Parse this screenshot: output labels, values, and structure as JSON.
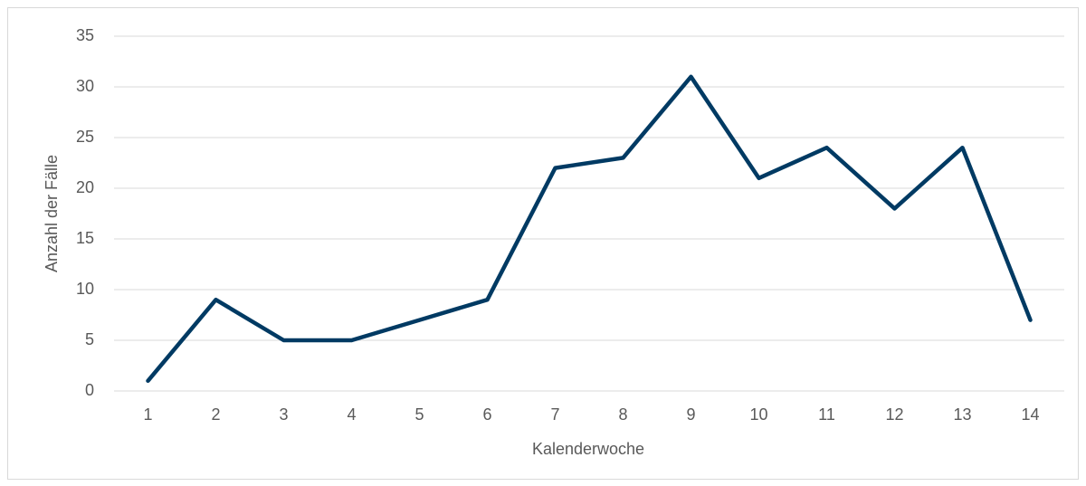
{
  "chart_data": {
    "type": "line",
    "xlabel": "Kalenderwoche",
    "ylabel": "Anzahl der Fälle",
    "categories": [
      "1",
      "2",
      "3",
      "4",
      "5",
      "6",
      "7",
      "8",
      "9",
      "10",
      "11",
      "12",
      "13",
      "14"
    ],
    "values": [
      1,
      9,
      5,
      5,
      7,
      9,
      22,
      23,
      31,
      21,
      24,
      18,
      24,
      7
    ],
    "color": "#003a63",
    "ylim": [
      0,
      35
    ],
    "yticks": [
      0,
      5,
      10,
      15,
      20,
      25,
      30,
      35
    ],
    "grid": true
  }
}
